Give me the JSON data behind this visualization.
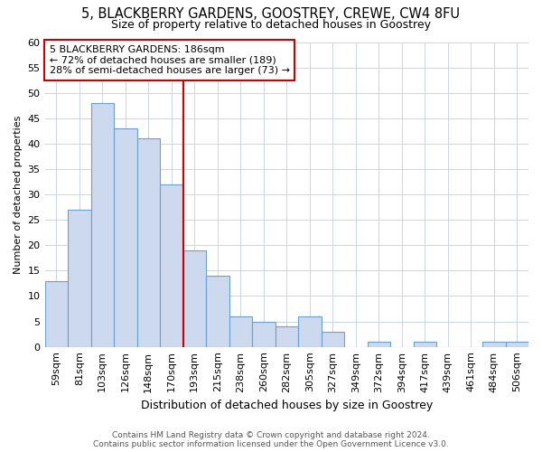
{
  "title": "5, BLACKBERRY GARDENS, GOOSTREY, CREWE, CW4 8FU",
  "subtitle": "Size of property relative to detached houses in Goostrey",
  "xlabel": "Distribution of detached houses by size in Goostrey",
  "ylabel": "Number of detached properties",
  "categories": [
    "59sqm",
    "81sqm",
    "103sqm",
    "126sqm",
    "148sqm",
    "170sqm",
    "193sqm",
    "215sqm",
    "238sqm",
    "260sqm",
    "282sqm",
    "305sqm",
    "327sqm",
    "349sqm",
    "372sqm",
    "394sqm",
    "417sqm",
    "439sqm",
    "461sqm",
    "484sqm",
    "506sqm"
  ],
  "values": [
    13,
    27,
    48,
    43,
    41,
    32,
    19,
    14,
    6,
    5,
    4,
    6,
    3,
    0,
    1,
    0,
    1,
    0,
    0,
    1,
    1
  ],
  "bar_color": "#ccd9ee",
  "bar_edge_color": "#6a9fd8",
  "vline_color": "#cc0000",
  "annotation_text": "5 BLACKBERRY GARDENS: 186sqm\n← 72% of detached houses are smaller (189)\n28% of semi-detached houses are larger (73) →",
  "annotation_box_color": "#ffffff",
  "annotation_box_edge_color": "#cc0000",
  "ylim": [
    0,
    60
  ],
  "yticks": [
    0,
    5,
    10,
    15,
    20,
    25,
    30,
    35,
    40,
    45,
    50,
    55,
    60
  ],
  "footer": "Contains HM Land Registry data © Crown copyright and database right 2024.\nContains public sector information licensed under the Open Government Licence v3.0.",
  "background_color": "#ffffff",
  "grid_color": "#c8d4e8",
  "title_fontsize": 10.5,
  "subtitle_fontsize": 9,
  "ylabel_fontsize": 8,
  "xlabel_fontsize": 9,
  "tick_fontsize": 8,
  "annot_fontsize": 8
}
